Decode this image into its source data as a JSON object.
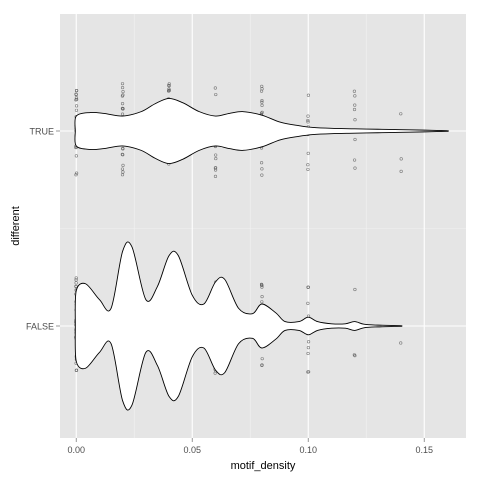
{
  "chart_data": {
    "type": "violin",
    "orientation": "horizontal",
    "xlabel": "motif_density",
    "ylabel": "different",
    "xlim": [
      -0.007,
      0.168
    ],
    "x_ticks": [
      0.0,
      0.05,
      0.1,
      0.15
    ],
    "x_tick_labels": [
      "0.00",
      "0.05",
      "0.10",
      "0.15"
    ],
    "categories": [
      "TRUE",
      "FALSE"
    ],
    "grid": true,
    "background": "#e5e5e5",
    "grid_color": "#ffffff",
    "violin_fill": "#ffffff",
    "violin_stroke": "#000000",
    "point_color": "#555555",
    "series": [
      {
        "category": "TRUE",
        "max_value": 0.16,
        "density_profile": [
          [
            -0.0004,
            0.0
          ],
          [
            0.0,
            0.17
          ],
          [
            0.006,
            0.21
          ],
          [
            0.012,
            0.2
          ],
          [
            0.02,
            0.17
          ],
          [
            0.028,
            0.22
          ],
          [
            0.034,
            0.31
          ],
          [
            0.04,
            0.37
          ],
          [
            0.046,
            0.32
          ],
          [
            0.053,
            0.22
          ],
          [
            0.06,
            0.17
          ],
          [
            0.066,
            0.2
          ],
          [
            0.072,
            0.22
          ],
          [
            0.08,
            0.18
          ],
          [
            0.088,
            0.1
          ],
          [
            0.096,
            0.06
          ],
          [
            0.102,
            0.04
          ],
          [
            0.11,
            0.03
          ],
          [
            0.12,
            0.025
          ],
          [
            0.13,
            0.02
          ],
          [
            0.14,
            0.015
          ],
          [
            0.15,
            0.01
          ],
          [
            0.1595,
            0.004
          ],
          [
            0.16,
            0.0
          ]
        ],
        "points": [
          {
            "x": 0.0,
            "n": 26
          },
          {
            "x": 0.02,
            "n": 26
          },
          {
            "x": 0.04,
            "n": 26
          },
          {
            "x": 0.06,
            "n": 20
          },
          {
            "x": 0.08,
            "n": 18
          },
          {
            "x": 0.1,
            "n": 9
          },
          {
            "x": 0.12,
            "n": 8
          },
          {
            "x": 0.14,
            "n": 3
          }
        ]
      },
      {
        "category": "FALSE",
        "max_value": 0.14,
        "density_profile": [
          [
            -0.0004,
            0.0
          ],
          [
            0.0,
            0.4
          ],
          [
            0.004,
            0.48
          ],
          [
            0.01,
            0.3
          ],
          [
            0.015,
            0.2
          ],
          [
            0.02,
            0.85
          ],
          [
            0.024,
            0.9
          ],
          [
            0.03,
            0.3
          ],
          [
            0.035,
            0.45
          ],
          [
            0.04,
            0.8
          ],
          [
            0.044,
            0.8
          ],
          [
            0.05,
            0.35
          ],
          [
            0.055,
            0.25
          ],
          [
            0.06,
            0.5
          ],
          [
            0.064,
            0.53
          ],
          [
            0.07,
            0.2
          ],
          [
            0.076,
            0.14
          ],
          [
            0.08,
            0.25
          ],
          [
            0.086,
            0.15
          ],
          [
            0.09,
            0.05
          ],
          [
            0.096,
            0.05
          ],
          [
            0.1,
            0.1
          ],
          [
            0.104,
            0.05
          ],
          [
            0.11,
            0.025
          ],
          [
            0.116,
            0.025
          ],
          [
            0.12,
            0.05
          ],
          [
            0.124,
            0.02
          ],
          [
            0.13,
            0.01
          ],
          [
            0.1395,
            0.004
          ],
          [
            0.14,
            0.0
          ]
        ],
        "points": [
          {
            "x": 0.0,
            "n": 40
          },
          {
            "x": 0.02,
            "n": 30
          },
          {
            "x": 0.04,
            "n": 40
          },
          {
            "x": 0.06,
            "n": 24
          },
          {
            "x": 0.08,
            "n": 18
          },
          {
            "x": 0.1,
            "n": 9
          },
          {
            "x": 0.12,
            "n": 4
          },
          {
            "x": 0.14,
            "n": 1
          }
        ]
      }
    ]
  }
}
